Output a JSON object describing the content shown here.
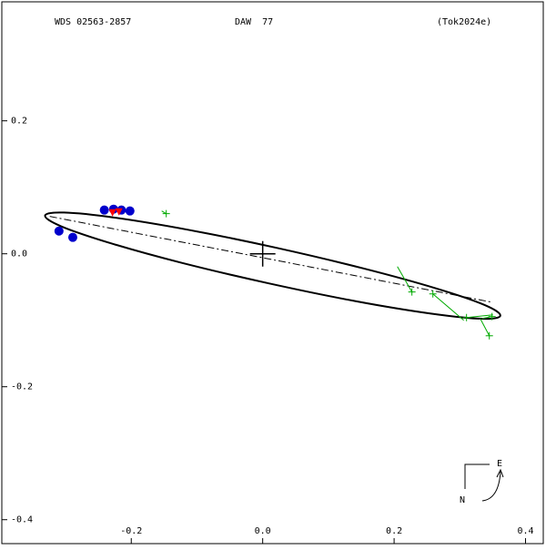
{
  "chart_data": {
    "type": "orbit",
    "header": [
      "WDS 02563-2857",
      "DAW  77",
      "(Tok2024e)"
    ],
    "xlim": [
      -0.397,
      0.427
    ],
    "ylim": [
      -0.436,
      0.379
    ],
    "xticks": [
      {
        "value": -0.2,
        "label": "-0.2"
      },
      {
        "value": 0,
        "label": "0.0"
      },
      {
        "value": 0.2,
        "label": "0.2"
      },
      {
        "value": 0.4,
        "label": "0.4"
      }
    ],
    "yticks": [
      {
        "value": 0.2,
        "label": "0.2"
      },
      {
        "value": 0,
        "label": "0.0"
      },
      {
        "value": -0.2,
        "label": "-0.2"
      },
      {
        "value": -0.4,
        "label": "-0.4"
      }
    ],
    "orbit": {
      "color": "#000000",
      "x": [
        0.3616,
        0.333,
        0.256,
        0.1424,
        0.0093,
        -0.123,
        -0.2338,
        -0.3071,
        -0.3312,
        -0.3025,
        -0.2255,
        -0.1119,
        0.0212,
        0.1535,
        0.2643,
        0.3377
      ],
      "y": [
        -0.0932,
        -0.0977,
        -0.09,
        -0.0715,
        -0.0445,
        -0.0137,
        0.0166,
        0.0415,
        0.0575,
        0.062,
        0.0544,
        0.0358,
        0.0089,
        -0.0221,
        -0.0522,
        -0.0771
      ]
    },
    "node_line": {
      "x": [
        -0.324,
        0.3476
      ],
      "y": [
        0.0562,
        -0.0726
      ]
    },
    "primary": {
      "x": 0,
      "y": 0
    },
    "micrometer": {
      "color": "#0000cc",
      "x": [
        -0.241,
        -0.227,
        -0.215,
        -0.202,
        -0.31,
        -0.289
      ],
      "y": [
        0.0658,
        0.0671,
        0.0658,
        0.0644,
        0.0342,
        0.0247
      ]
    },
    "speckle": {
      "color": "#ff0000",
      "x": [
        -0.2285,
        -0.2188
      ],
      "y": [
        0.0616,
        0.063
      ]
    },
    "measurements": {
      "color": "#00aa00",
      "x": [
        -0.1468,
        0.2271,
        0.259,
        0.3102,
        0.3449,
        0.349
      ],
      "y": [
        0.0603,
        -0.0575,
        -0.0603,
        -0.0959,
        -0.1233,
        -0.0945
      ],
      "pred_x": [
        -0.1537,
        0.205,
        0.306,
        0.3504,
        0.331,
        0.3338
      ],
      "pred_y": [
        0.0644,
        -0.0192,
        -0.1,
        -0.0918,
        -0.0973,
        -0.0973
      ]
    },
    "compass": {
      "east": "E",
      "north": "N"
    }
  }
}
